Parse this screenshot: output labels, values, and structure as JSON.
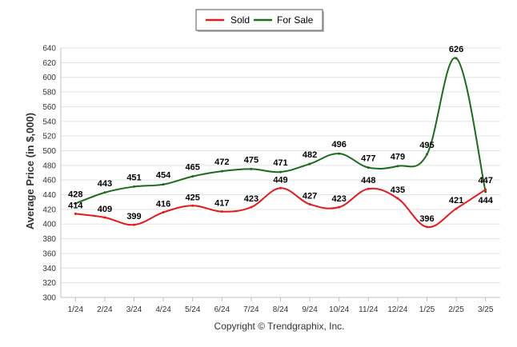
{
  "chart_data": {
    "type": "line",
    "title": "",
    "xlabel": "",
    "ylabel": "Average Price (in $,000)",
    "ylim": [
      300,
      640
    ],
    "ytick_step": 20,
    "grid": "horizontal",
    "legend_position": "top-center",
    "credit": "Copyright © Trendgraphix, Inc.",
    "categories": [
      "1/24",
      "2/24",
      "3/24",
      "4/24",
      "5/24",
      "6/24",
      "7/24",
      "8/24",
      "9/24",
      "10/24",
      "11/24",
      "12/24",
      "1/25",
      "2/25",
      "3/25"
    ],
    "series": [
      {
        "name": "Sold",
        "color": "#e41a1c",
        "values": [
          414,
          409,
          399,
          416,
          425,
          417,
          423,
          449,
          427,
          423,
          448,
          435,
          396,
          421,
          447
        ]
      },
      {
        "name": "For Sale",
        "color": "#1a6b1a",
        "values": [
          428,
          443,
          451,
          454,
          465,
          472,
          475,
          471,
          482,
          496,
          477,
          479,
          495,
          626,
          444
        ]
      }
    ]
  }
}
